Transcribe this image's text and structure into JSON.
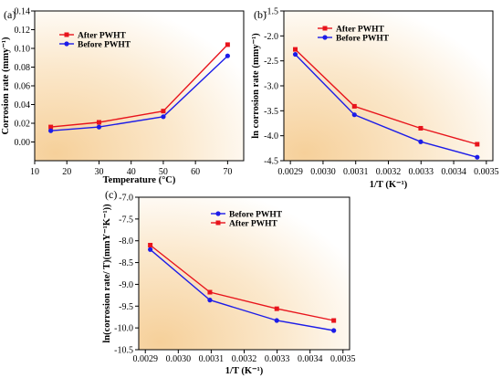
{
  "chart_data": [
    {
      "type": "line",
      "panel_label": "(a)",
      "xlabel": "Temperature (°C)",
      "ylabel": "Corrosion rate (mmy⁻¹)",
      "xlim": [
        10,
        75
      ],
      "ylim": [
        -0.02,
        0.14
      ],
      "xticks": [
        "10",
        "20",
        "30",
        "40",
        "50",
        "60",
        "70"
      ],
      "yticks": [
        "0.00",
        "0.02",
        "0.04",
        "0.06",
        "0.08",
        "0.10",
        "0.12",
        "0.14"
      ],
      "x": [
        15,
        30,
        50,
        70
      ],
      "series": [
        {
          "name": "After PWHT",
          "color": "#e8141c",
          "marker": "square",
          "values": [
            0.016,
            0.021,
            0.033,
            0.104
          ]
        },
        {
          "name": "Before PWHT",
          "color": "#1c1ce8",
          "marker": "circle",
          "values": [
            0.012,
            0.016,
            0.027,
            0.092
          ]
        }
      ],
      "legend": "top-left"
    },
    {
      "type": "line",
      "panel_label": "(b)",
      "xlabel": "1/T (K⁻¹)",
      "ylabel": "ln corrosion rate (mmy⁻¹)",
      "xlim": [
        0.00288,
        0.00352
      ],
      "ylim": [
        -4.5,
        -1.5
      ],
      "xticks": [
        "0.0029",
        "0.0030",
        "0.0031",
        "0.0032",
        "0.0033",
        "0.0034",
        "0.0035"
      ],
      "yticks": [
        "-1.5",
        "-2.0",
        "-2.5",
        "-3.0",
        "-3.5",
        "-4.0",
        "-4.5"
      ],
      "x": [
        0.002915,
        0.003096,
        0.003299,
        0.003472
      ],
      "series": [
        {
          "name": "After PWHT",
          "color": "#e8141c",
          "marker": "square",
          "values": [
            -2.27,
            -3.41,
            -3.85,
            -4.17
          ]
        },
        {
          "name": "Before PWHT",
          "color": "#1c1ce8",
          "marker": "circle",
          "values": [
            -2.37,
            -3.58,
            -4.12,
            -4.43
          ]
        }
      ],
      "legend": "top-left"
    },
    {
      "type": "line",
      "panel_label": "(c)",
      "xlabel": "1/T (K⁻¹)",
      "ylabel": "ln(corrosion rate/ T)(mmY⁻¹K⁻¹))",
      "xlim": [
        0.00288,
        0.00352
      ],
      "ylim": [
        -10.5,
        -7.0
      ],
      "xticks": [
        "0.0029",
        "0.0030",
        "0.0031",
        "0.0032",
        "0.0033",
        "0.0034",
        "0.0035"
      ],
      "yticks": [
        "-7.0",
        "-7.5",
        "-8.0",
        "-8.5",
        "-9.0",
        "-9.5",
        "-10.0",
        "-10.5"
      ],
      "x": [
        0.002915,
        0.003096,
        0.003299,
        0.003472
      ],
      "series": [
        {
          "name": "Before PWHT",
          "color": "#1c1ce8",
          "marker": "circle",
          "values": [
            -8.2,
            -9.36,
            -9.83,
            -10.06
          ]
        },
        {
          "name": "After PWHT",
          "color": "#e8141c",
          "marker": "square",
          "values": [
            -8.1,
            -9.18,
            -9.56,
            -9.83
          ]
        }
      ],
      "legend": "top-center"
    }
  ]
}
